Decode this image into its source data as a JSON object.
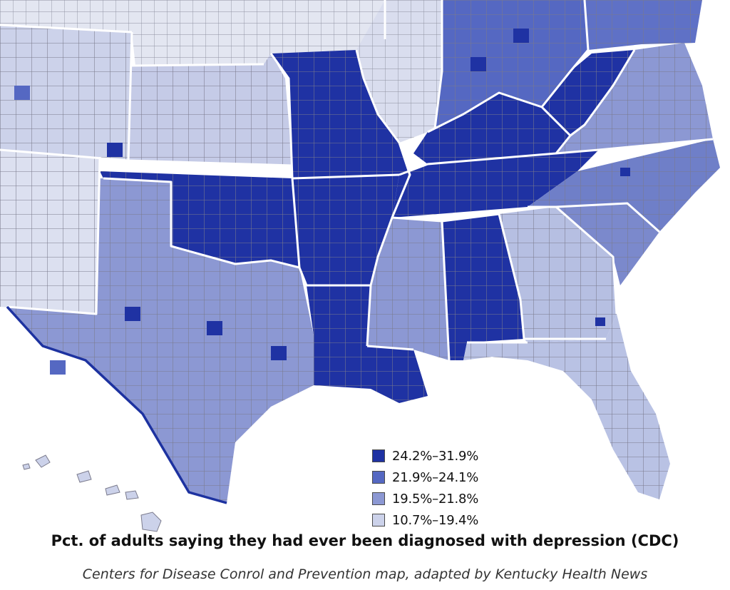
{
  "colors": {
    "class1": "#1f32a3",
    "class2": "#5568c2",
    "class3": "#8c98d3",
    "class4": "#ccd2ea",
    "county_border": "#7a7a8c",
    "state_border": "#ffffff",
    "coast": "#1d32a0",
    "land_north": "#e3e6f1"
  },
  "legend": {
    "items": [
      {
        "label": "24.2%–31.9%",
        "color": "#1f32a3"
      },
      {
        "label": "21.9%–24.1%",
        "color": "#5568c2"
      },
      {
        "label": "19.5%–21.8%",
        "color": "#8c98d3"
      },
      {
        "label": "10.7%–19.4%",
        "color": "#ccd2ea"
      }
    ]
  },
  "title": "Pct. of adults saying they had ever been diagnosed with depression (CDC)",
  "caption": "Centers for Disease Conrol and Prevention map, adapted by Kentucky Health News"
}
